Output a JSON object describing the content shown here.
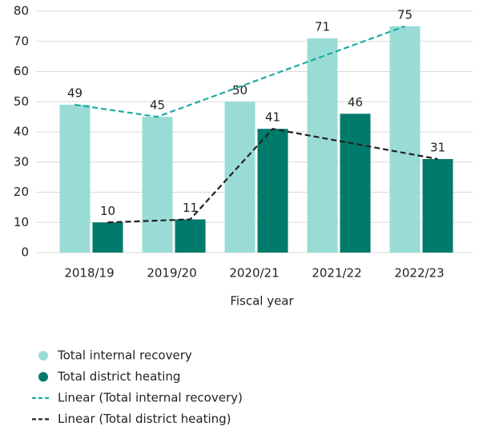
{
  "chart_data": {
    "type": "bar",
    "x_label": "Fiscal year",
    "categories": [
      "2018/19",
      "2019/20",
      "2020/21",
      "2021/22",
      "2022/23"
    ],
    "series": [
      {
        "name": "Total internal recovery",
        "color": "#99dcd5",
        "values": [
          49,
          45,
          50,
          71,
          75
        ]
      },
      {
        "name": "Total district heating",
        "color": "#007a6a",
        "values": [
          10,
          11,
          41,
          46,
          31
        ]
      },
      {
        "name": "Linear (Total internal recovery)",
        "type": "line",
        "dashed": true,
        "color": "#1aaca2",
        "values": [
          49,
          45,
          55,
          65,
          75
        ]
      },
      {
        "name": "Linear (Total district heating)",
        "type": "line",
        "dashed": true,
        "color": "#222222",
        "values": [
          10,
          11,
          41,
          36,
          31
        ]
      }
    ],
    "ylim": [
      0,
      80
    ],
    "yticks": [
      0,
      10,
      20,
      30,
      40,
      50,
      60,
      70,
      80
    ],
    "grid": true,
    "legend": "bottom"
  }
}
